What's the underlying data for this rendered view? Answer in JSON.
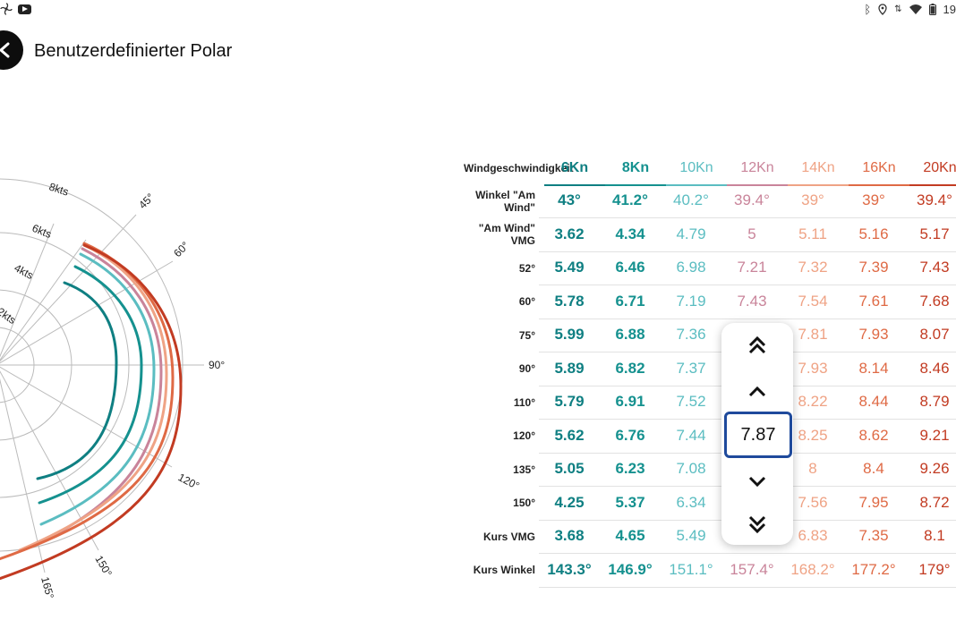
{
  "status_bar": {
    "time": "19",
    "icons": [
      "fan-icon",
      "youtube-icon",
      "bluetooth-icon",
      "location-icon",
      "data-icon",
      "wifi-icon",
      "battery-icon"
    ]
  },
  "header": {
    "title": "Benutzerdefinierter Polar"
  },
  "polar_chart": {
    "speed_rings": [
      "2kts",
      "4kts",
      "6kts",
      "8kts"
    ],
    "angle_labels": [
      "45°",
      "60°",
      "90°",
      "120°",
      "150°",
      "165°"
    ],
    "series_colors": [
      "#0f7f82",
      "#15918f",
      "#5bbdc1",
      "#c9849a",
      "#efa385",
      "#df6a45",
      "#c23b22"
    ]
  },
  "table": {
    "header_label": "Windgeschwindigkeit",
    "columns": [
      "6Kn",
      "8Kn",
      "10Kn",
      "12Kn",
      "14Kn",
      "16Kn",
      "20Kn"
    ],
    "rows": [
      {
        "label": "Winkel \"Am Wind\"",
        "values": [
          "43°",
          "41.2°",
          "40.2°",
          "39.4°",
          "39°",
          "39°",
          "39.4°"
        ]
      },
      {
        "label": "\"Am Wind\" VMG",
        "values": [
          "3.62",
          "4.34",
          "4.79",
          "5",
          "5.11",
          "5.16",
          "5.17"
        ]
      },
      {
        "label": "52°",
        "values": [
          "5.49",
          "6.46",
          "6.98",
          "7.21",
          "7.32",
          "7.39",
          "7.43"
        ]
      },
      {
        "label": "60°",
        "values": [
          "5.78",
          "6.71",
          "7.19",
          "7.43",
          "7.54",
          "7.61",
          "7.68"
        ]
      },
      {
        "label": "75°",
        "values": [
          "5.99",
          "6.88",
          "7.36",
          "",
          "7.81",
          "7.93",
          "8.07"
        ]
      },
      {
        "label": "90°",
        "values": [
          "5.89",
          "6.82",
          "7.37",
          "",
          "7.93",
          "8.14",
          "8.46"
        ]
      },
      {
        "label": "110°",
        "values": [
          "5.79",
          "6.91",
          "7.52",
          "",
          "8.22",
          "8.44",
          "8.79"
        ]
      },
      {
        "label": "120°",
        "values": [
          "5.62",
          "6.76",
          "7.44",
          "",
          "8.25",
          "8.62",
          "9.21"
        ]
      },
      {
        "label": "135°",
        "values": [
          "5.05",
          "6.23",
          "7.08",
          "",
          "8",
          "8.4",
          "9.26"
        ]
      },
      {
        "label": "150°",
        "values": [
          "4.25",
          "5.37",
          "6.34",
          "",
          "7.56",
          "7.95",
          "8.72"
        ]
      },
      {
        "label": "Kurs VMG",
        "values": [
          "3.68",
          "4.65",
          "5.49",
          "",
          "6.83",
          "7.35",
          "8.1"
        ]
      },
      {
        "label": "Kurs Winkel",
        "values": [
          "143.3°",
          "146.9°",
          "151.1°",
          "157.4°",
          "168.2°",
          "177.2°",
          "179°"
        ]
      }
    ]
  },
  "stepper": {
    "value": "7.87"
  }
}
